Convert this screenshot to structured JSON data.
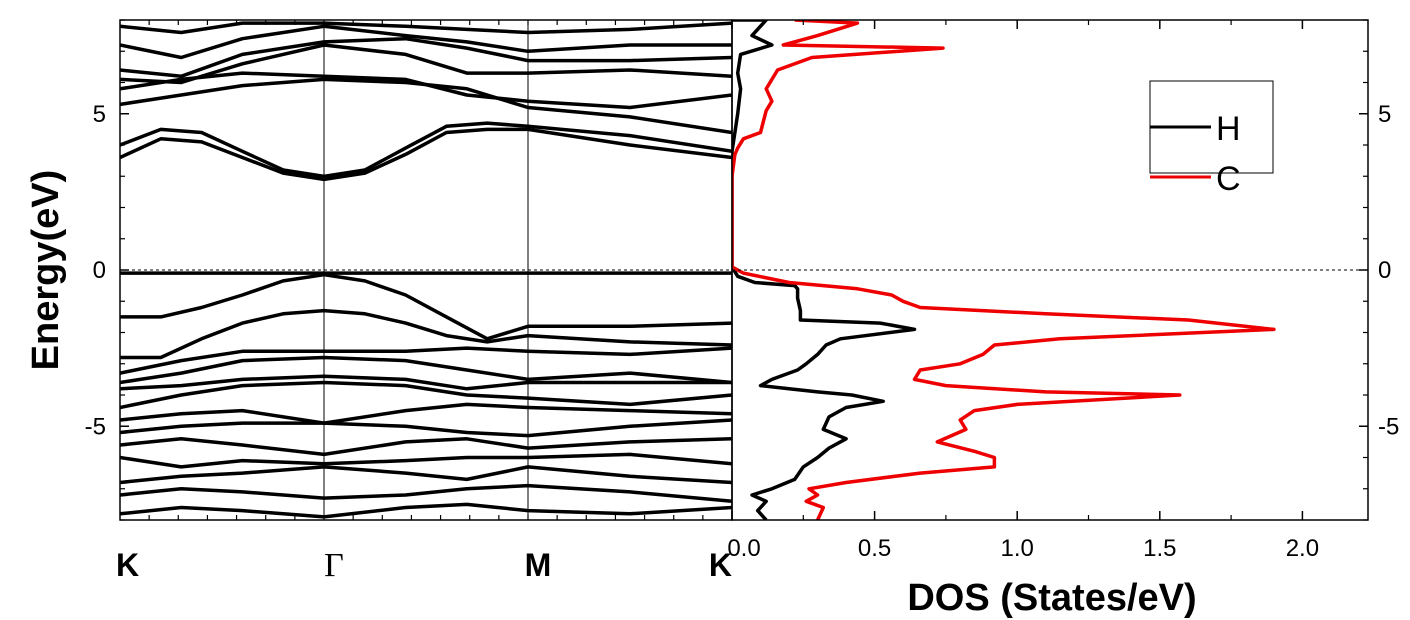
{
  "chart_data": [
    {
      "type": "line",
      "title": "",
      "ylabel": "Energy(eV)",
      "xlabel": "",
      "k_points": [
        "K",
        "Γ",
        "M",
        "K"
      ],
      "k_positions": [
        0,
        1,
        2,
        3
      ],
      "ylim": [
        -8,
        8
      ],
      "y_ticks": [
        -5,
        0,
        5
      ],
      "y_tick_labels": [
        "-5",
        "0",
        "5"
      ],
      "fermi_level": 0,
      "grid": false,
      "series_color": "#000000",
      "bands": [
        {
          "x": [
            0,
            0.15,
            0.3,
            0.5,
            0.75,
            1.0,
            1.25,
            1.5,
            1.7,
            1.85,
            2.0,
            2.5,
            3.0
          ],
          "y": [
            -0.1,
            -0.1,
            -0.1,
            -0.1,
            -0.1,
            -0.1,
            -0.1,
            -0.1,
            -0.1,
            -0.1,
            -0.1,
            -0.1,
            -0.1
          ]
        },
        {
          "x": [
            0,
            0.2,
            0.4,
            0.6,
            0.8,
            1.0,
            1.2,
            1.4,
            1.6,
            1.8,
            2.0,
            2.5,
            3.0
          ],
          "y": [
            -1.5,
            -1.5,
            -1.2,
            -0.8,
            -0.35,
            -0.15,
            -0.35,
            -0.8,
            -1.5,
            -2.2,
            -1.8,
            -1.8,
            -1.7
          ]
        },
        {
          "x": [
            0,
            0.2,
            0.4,
            0.6,
            0.8,
            1.0,
            1.2,
            1.4,
            1.6,
            1.8,
            2.0,
            2.5,
            3.0
          ],
          "y": [
            -2.8,
            -2.8,
            -2.2,
            -1.7,
            -1.4,
            -1.3,
            -1.4,
            -1.7,
            -2.1,
            -2.3,
            -2.1,
            -2.3,
            -2.4
          ]
        },
        {
          "x": [
            0,
            0.3,
            0.6,
            1.0,
            1.4,
            1.7,
            2.0,
            2.5,
            3.0
          ],
          "y": [
            -3.3,
            -2.9,
            -2.6,
            -2.6,
            -2.6,
            -2.5,
            -2.6,
            -2.7,
            -2.5
          ]
        },
        {
          "x": [
            0,
            0.3,
            0.6,
            1.0,
            1.4,
            1.7,
            2.0,
            2.5,
            3.0
          ],
          "y": [
            -3.6,
            -3.3,
            -2.9,
            -2.8,
            -2.9,
            -3.2,
            -3.5,
            -3.3,
            -3.6
          ]
        },
        {
          "x": [
            0,
            0.3,
            0.6,
            1.0,
            1.4,
            1.7,
            2.0,
            2.5,
            3.0
          ],
          "y": [
            -3.8,
            -3.7,
            -3.5,
            -3.4,
            -3.5,
            -3.8,
            -3.6,
            -3.6,
            -3.6
          ]
        },
        {
          "x": [
            0,
            0.3,
            0.6,
            1.0,
            1.4,
            1.7,
            2.0,
            2.5,
            3.0
          ],
          "y": [
            -4.4,
            -4.0,
            -3.7,
            -3.6,
            -3.7,
            -4.0,
            -4.1,
            -4.3,
            -4.0
          ]
        },
        {
          "x": [
            0,
            0.3,
            0.6,
            1.0,
            1.4,
            1.7,
            2.0,
            2.5,
            3.0
          ],
          "y": [
            -4.8,
            -4.6,
            -4.5,
            -4.9,
            -4.5,
            -4.3,
            -4.4,
            -4.5,
            -4.6
          ]
        },
        {
          "x": [
            0,
            0.3,
            0.6,
            1.0,
            1.4,
            1.7,
            2.0,
            2.5,
            3.0
          ],
          "y": [
            -5.2,
            -5.0,
            -4.9,
            -4.9,
            -5.0,
            -5.2,
            -5.3,
            -5.0,
            -4.8
          ]
        },
        {
          "x": [
            0,
            0.3,
            0.6,
            1.0,
            1.4,
            1.7,
            2.0,
            2.5,
            3.0
          ],
          "y": [
            -5.6,
            -5.4,
            -5.6,
            -5.9,
            -5.5,
            -5.4,
            -5.7,
            -5.5,
            -5.4
          ]
        },
        {
          "x": [
            0,
            0.3,
            0.6,
            1.0,
            1.4,
            1.7,
            2.0,
            2.5,
            3.0
          ],
          "y": [
            -6.0,
            -6.3,
            -6.1,
            -6.2,
            -6.1,
            -6.0,
            -6.0,
            -5.9,
            -6.2
          ]
        },
        {
          "x": [
            0,
            0.3,
            0.6,
            1.0,
            1.4,
            1.7,
            2.0,
            2.5,
            3.0
          ],
          "y": [
            -6.8,
            -6.6,
            -6.5,
            -6.3,
            -6.5,
            -6.7,
            -6.3,
            -6.6,
            -6.8
          ]
        },
        {
          "x": [
            0,
            0.3,
            0.6,
            1.0,
            1.4,
            1.7,
            2.0,
            2.5,
            3.0
          ],
          "y": [
            -7.2,
            -7.0,
            -7.1,
            -7.3,
            -7.2,
            -7.0,
            -6.9,
            -7.1,
            -7.4
          ]
        },
        {
          "x": [
            0,
            0.3,
            0.6,
            1.0,
            1.4,
            1.7,
            2.0,
            2.5,
            3.0
          ],
          "y": [
            -7.8,
            -7.6,
            -7.7,
            -7.9,
            -7.6,
            -7.5,
            -7.7,
            -7.8,
            -7.6
          ]
        },
        {
          "x": [
            0,
            0.2,
            0.4,
            0.6,
            0.8,
            1.0,
            1.2,
            1.4,
            1.6,
            1.8,
            2.0,
            2.5,
            3.0
          ],
          "y": [
            3.6,
            4.2,
            4.1,
            3.6,
            3.1,
            2.9,
            3.1,
            3.7,
            4.4,
            4.5,
            4.5,
            4.0,
            3.6
          ]
        },
        {
          "x": [
            0,
            0.2,
            0.4,
            0.6,
            0.8,
            1.0,
            1.2,
            1.4,
            1.6,
            1.8,
            2.0,
            2.5,
            3.0
          ],
          "y": [
            4.0,
            4.5,
            4.4,
            3.8,
            3.2,
            3.0,
            3.2,
            3.9,
            4.6,
            4.7,
            4.6,
            4.3,
            3.8
          ]
        },
        {
          "x": [
            0,
            0.3,
            0.6,
            1.0,
            1.4,
            1.7,
            2.0,
            2.5,
            3.0
          ],
          "y": [
            5.3,
            5.6,
            5.9,
            6.1,
            6.0,
            5.8,
            5.2,
            4.9,
            4.4
          ]
        },
        {
          "x": [
            0,
            0.3,
            0.6,
            1.0,
            1.4,
            1.7,
            2.0,
            2.5,
            3.0
          ],
          "y": [
            5.8,
            6.1,
            6.3,
            6.2,
            6.1,
            5.6,
            5.4,
            5.2,
            5.6
          ]
        },
        {
          "x": [
            0,
            0.3,
            0.6,
            1.0,
            1.4,
            1.7,
            2.0,
            2.5,
            3.0
          ],
          "y": [
            6.1,
            6.0,
            6.6,
            7.2,
            6.9,
            6.3,
            6.3,
            6.4,
            6.2
          ]
        },
        {
          "x": [
            0,
            0.3,
            0.6,
            1.0,
            1.4,
            1.7,
            2.0,
            2.5,
            3.0
          ],
          "y": [
            6.4,
            6.2,
            6.9,
            7.3,
            7.4,
            7.1,
            6.7,
            6.7,
            6.8
          ]
        },
        {
          "x": [
            0,
            0.3,
            0.6,
            1.0,
            1.4,
            1.7,
            2.0,
            2.5,
            3.0
          ],
          "y": [
            7.2,
            6.8,
            7.4,
            7.8,
            7.5,
            7.3,
            7.0,
            7.2,
            7.2
          ]
        },
        {
          "x": [
            0,
            0.3,
            0.6,
            1.0,
            1.4,
            1.7,
            2.0,
            2.5,
            3.0
          ],
          "y": [
            7.8,
            7.6,
            7.9,
            7.9,
            7.8,
            7.7,
            7.6,
            7.7,
            7.9
          ]
        }
      ]
    },
    {
      "type": "line",
      "title": "",
      "xlabel": "DOS (States/eV)",
      "ylabel": "",
      "xlim": [
        0,
        2.23
      ],
      "ylim": [
        -8,
        8
      ],
      "x_ticks": [
        0,
        0.5,
        1.0,
        1.5,
        2.0
      ],
      "x_tick_labels": [
        "0.0",
        "0.5",
        "1.0",
        "1.5",
        "2.0"
      ],
      "y_ticks": [
        -5,
        0,
        5
      ],
      "y_tick_labels": [
        "-5",
        "0",
        "5"
      ],
      "fermi_level": 0,
      "legend_position": "top-right",
      "grid": false,
      "series": [
        {
          "name": "H",
          "color": "#000000",
          "points": [
            [
              0.0,
              8.0
            ],
            [
              0.12,
              8.0
            ],
            [
              0.07,
              7.5
            ],
            [
              0.14,
              7.2
            ],
            [
              0.03,
              6.9
            ],
            [
              0.02,
              6.3
            ],
            [
              0.03,
              5.8
            ],
            [
              0.02,
              5.0
            ],
            [
              0.01,
              4.4
            ],
            [
              0.0,
              3.8
            ],
            [
              0.0,
              0.1
            ],
            [
              0.02,
              -0.2
            ],
            [
              0.08,
              -0.4
            ],
            [
              0.22,
              -0.5
            ],
            [
              0.23,
              -0.6
            ],
            [
              0.23,
              -0.9
            ],
            [
              0.24,
              -1.3
            ],
            [
              0.24,
              -1.6
            ],
            [
              0.52,
              -1.7
            ],
            [
              0.64,
              -1.9
            ],
            [
              0.38,
              -2.2
            ],
            [
              0.33,
              -2.4
            ],
            [
              0.3,
              -2.7
            ],
            [
              0.26,
              -3.0
            ],
            [
              0.23,
              -3.2
            ],
            [
              0.14,
              -3.5
            ],
            [
              0.1,
              -3.7
            ],
            [
              0.2,
              -3.8
            ],
            [
              0.3,
              -3.9
            ],
            [
              0.42,
              -4.0
            ],
            [
              0.53,
              -4.2
            ],
            [
              0.4,
              -4.4
            ],
            [
              0.34,
              -4.7
            ],
            [
              0.32,
              -5.1
            ],
            [
              0.4,
              -5.4
            ],
            [
              0.34,
              -5.7
            ],
            [
              0.3,
              -6.0
            ],
            [
              0.25,
              -6.3
            ],
            [
              0.22,
              -6.7
            ],
            [
              0.14,
              -7.0
            ],
            [
              0.07,
              -7.2
            ],
            [
              0.12,
              -7.4
            ],
            [
              0.09,
              -7.7
            ],
            [
              0.12,
              -8.0
            ]
          ]
        },
        {
          "name": "C",
          "color": "#ee0000",
          "points": [
            [
              0.22,
              8.0
            ],
            [
              0.44,
              7.9
            ],
            [
              0.3,
              7.5
            ],
            [
              0.18,
              7.2
            ],
            [
              0.74,
              7.1
            ],
            [
              0.28,
              6.8
            ],
            [
              0.16,
              6.4
            ],
            [
              0.12,
              5.8
            ],
            [
              0.14,
              5.4
            ],
            [
              0.12,
              5.1
            ],
            [
              0.1,
              4.4
            ],
            [
              0.04,
              4.2
            ],
            [
              0.02,
              3.9
            ],
            [
              0.01,
              3.7
            ],
            [
              0.0,
              3.0
            ],
            [
              0.0,
              0.1
            ],
            [
              0.04,
              -0.1
            ],
            [
              0.2,
              -0.4
            ],
            [
              0.44,
              -0.6
            ],
            [
              0.56,
              -0.8
            ],
            [
              0.6,
              -1.0
            ],
            [
              0.66,
              -1.2
            ],
            [
              1.1,
              -1.4
            ],
            [
              1.6,
              -1.6
            ],
            [
              1.9,
              -1.9
            ],
            [
              1.15,
              -2.2
            ],
            [
              0.92,
              -2.4
            ],
            [
              0.88,
              -2.7
            ],
            [
              0.8,
              -3.0
            ],
            [
              0.66,
              -3.2
            ],
            [
              0.64,
              -3.5
            ],
            [
              0.75,
              -3.7
            ],
            [
              1.1,
              -3.9
            ],
            [
              1.57,
              -4.0
            ],
            [
              1.0,
              -4.3
            ],
            [
              0.85,
              -4.5
            ],
            [
              0.8,
              -4.8
            ],
            [
              0.82,
              -5.1
            ],
            [
              0.72,
              -5.5
            ],
            [
              0.85,
              -5.8
            ],
            [
              0.92,
              -6.0
            ],
            [
              0.92,
              -6.3
            ],
            [
              0.66,
              -6.5
            ],
            [
              0.4,
              -6.8
            ],
            [
              0.27,
              -7.0
            ],
            [
              0.3,
              -7.2
            ],
            [
              0.26,
              -7.4
            ],
            [
              0.32,
              -7.6
            ],
            [
              0.3,
              -8.0
            ]
          ]
        }
      ]
    }
  ]
}
